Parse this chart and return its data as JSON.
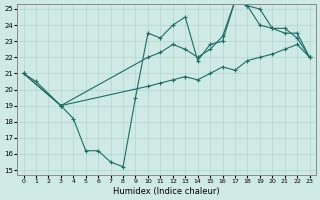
{
  "xlabel": "Humidex (Indice chaleur)",
  "xlim": [
    -0.5,
    23.5
  ],
  "ylim": [
    14.7,
    25.3
  ],
  "yticks": [
    15,
    16,
    17,
    18,
    19,
    20,
    21,
    22,
    23,
    24,
    25
  ],
  "xticks": [
    0,
    1,
    2,
    3,
    4,
    5,
    6,
    7,
    8,
    9,
    10,
    11,
    12,
    13,
    14,
    15,
    16,
    17,
    18,
    19,
    20,
    21,
    22,
    23
  ],
  "bg_color": "#cfe9e5",
  "grid_color": "#b0d4d0",
  "line_color": "#1a6e64",
  "line1_x": [
    0,
    1,
    3,
    4,
    5,
    6,
    7,
    8,
    9,
    10,
    11,
    12,
    13,
    14,
    15,
    16,
    17,
    18,
    19,
    20,
    21,
    22,
    23
  ],
  "line1_y": [
    21.0,
    20.5,
    19.0,
    18.2,
    16.2,
    16.2,
    15.5,
    15.2,
    19.5,
    23.5,
    23.2,
    24.0,
    24.5,
    21.8,
    22.8,
    23.0,
    25.5,
    25.2,
    24.0,
    23.8,
    23.5,
    23.5,
    22.0
  ],
  "line2_x": [
    0,
    3,
    10,
    11,
    12,
    13,
    14,
    15,
    16,
    17,
    18,
    19,
    20,
    21,
    22,
    23
  ],
  "line2_y": [
    21.0,
    19.0,
    22.0,
    22.3,
    22.8,
    22.5,
    22.0,
    22.5,
    23.3,
    25.5,
    25.2,
    25.0,
    23.8,
    23.8,
    23.2,
    22.0
  ],
  "line3_x": [
    0,
    3,
    10,
    11,
    12,
    13,
    14,
    15,
    16,
    17,
    18,
    19,
    20,
    21,
    22,
    23
  ],
  "line3_y": [
    21.0,
    19.0,
    20.2,
    20.4,
    20.6,
    20.8,
    20.6,
    21.0,
    21.4,
    21.2,
    21.8,
    22.0,
    22.2,
    22.5,
    22.8,
    22.0
  ]
}
